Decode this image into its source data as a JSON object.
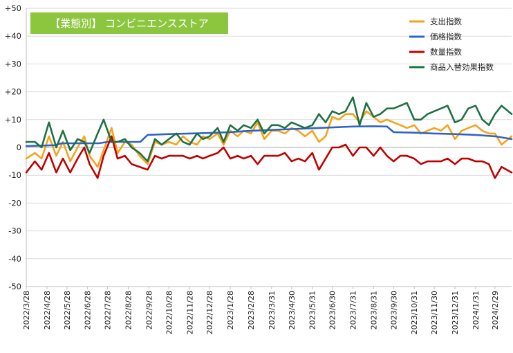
{
  "chart_data": {
    "type": "line",
    "title": "【業態別】 コンビニエンスストア",
    "title_bg_color": "#8cc63f",
    "ylim": [
      -50,
      50
    ],
    "y_ticks": [
      "-50",
      "-40",
      "-30",
      "-20",
      "-10",
      "0",
      "+10",
      "+20",
      "+30",
      "+40",
      "+50"
    ],
    "y_tick_values": [
      -50,
      -40,
      -30,
      -20,
      -10,
      0,
      10,
      20,
      30,
      40,
      50
    ],
    "x_start": "2022-03-28",
    "x_end": "2024-03-25",
    "x_tick_labels": [
      "2022/3/28",
      "2022/4/28",
      "2022/5/28",
      "2022/6/28",
      "2022/7/28",
      "2022/8/28",
      "2022/9/28",
      "2022/10/28",
      "2022/11/28",
      "2022/12/28",
      "2023/1/28",
      "2023/2/28",
      "2023/3/31",
      "2023/4/30",
      "2023/5/31",
      "2023/6/30",
      "2023/7/31",
      "2023/8/31",
      "2023/9/30",
      "2023/10/31",
      "2023/11/30",
      "2023/12/31",
      "2024/1/31",
      "2024/2/29"
    ],
    "x_tick_dates": [
      "2022-03-28",
      "2022-04-28",
      "2022-05-28",
      "2022-06-28",
      "2022-07-28",
      "2022-08-28",
      "2022-09-28",
      "2022-10-28",
      "2022-11-28",
      "2022-12-28",
      "2023-01-28",
      "2023-02-28",
      "2023-03-31",
      "2023-04-30",
      "2023-05-31",
      "2023-06-30",
      "2023-07-31",
      "2023-08-31",
      "2023-09-30",
      "2023-10-31",
      "2023-11-30",
      "2023-12-31",
      "2024-01-31",
      "2024-02-29"
    ],
    "legend_position": "top-right",
    "grid": "horizontal",
    "series": [
      {
        "name": "支出指数",
        "color": "#f7a21b",
        "x": [
          "2022-03-28",
          "2022-04-10",
          "2022-04-20",
          "2022-05-01",
          "2022-05-12",
          "2022-05-22",
          "2022-06-02",
          "2022-06-13",
          "2022-06-23",
          "2022-07-01",
          "2022-07-13",
          "2022-07-22",
          "2022-08-03",
          "2022-08-12",
          "2022-08-23",
          "2022-09-02",
          "2022-09-14",
          "2022-09-26",
          "2022-10-07",
          "2022-10-17",
          "2022-10-28",
          "2022-11-08",
          "2022-11-18",
          "2022-11-28",
          "2022-12-09",
          "2022-12-18",
          "2022-12-28",
          "2023-01-09",
          "2023-01-18",
          "2023-01-28",
          "2023-02-08",
          "2023-02-17",
          "2023-02-28",
          "2023-03-10",
          "2023-03-20",
          "2023-03-31",
          "2023-04-10",
          "2023-04-20",
          "2023-04-30",
          "2023-05-10",
          "2023-05-20",
          "2023-05-31",
          "2023-06-10",
          "2023-06-20",
          "2023-06-30",
          "2023-07-10",
          "2023-07-20",
          "2023-07-31",
          "2023-08-10",
          "2023-08-20",
          "2023-08-31",
          "2023-09-10",
          "2023-09-20",
          "2023-09-30",
          "2023-10-10",
          "2023-10-20",
          "2023-10-31",
          "2023-11-10",
          "2023-11-20",
          "2023-11-30",
          "2023-12-10",
          "2023-12-20",
          "2023-12-31",
          "2024-01-10",
          "2024-01-20",
          "2024-01-31",
          "2024-02-10",
          "2024-02-20",
          "2024-02-29",
          "2024-03-10",
          "2024-03-25"
        ],
        "values": [
          -4,
          -2,
          -4,
          4,
          -3,
          2,
          -5,
          0,
          4,
          -3,
          -7,
          -1,
          7,
          -2,
          2,
          1,
          -3,
          -6,
          2,
          1,
          2,
          1,
          4,
          2,
          1,
          4,
          3,
          5,
          1,
          6,
          4,
          6,
          5,
          9,
          3,
          6,
          6,
          5,
          7,
          6,
          4,
          6,
          2,
          4,
          11,
          10,
          12,
          12,
          9,
          13,
          11,
          9,
          10,
          9,
          8,
          7,
          8,
          5,
          6,
          7,
          6,
          8,
          3,
          6,
          7,
          8,
          6,
          5,
          5,
          1,
          4
        ]
      },
      {
        "name": "価格指数",
        "color": "#2e64c8",
        "x": [
          "2022-03-28",
          "2022-05-10",
          "2022-05-20",
          "2022-06-20",
          "2022-07-15",
          "2022-07-28",
          "2022-08-20",
          "2022-09-15",
          "2022-09-26",
          "2022-10-28",
          "2022-11-28",
          "2022-12-28",
          "2023-01-28",
          "2023-02-28",
          "2023-03-31",
          "2023-04-30",
          "2023-05-31",
          "2023-06-30",
          "2023-07-31",
          "2023-08-31",
          "2023-09-20",
          "2023-09-30",
          "2023-10-31",
          "2023-11-30",
          "2023-12-31",
          "2024-01-31",
          "2024-02-29",
          "2024-03-25"
        ],
        "values": [
          0.5,
          0.8,
          1.5,
          1.5,
          1.5,
          2.0,
          2.0,
          2.0,
          4.5,
          4.8,
          5.0,
          5.2,
          5.5,
          6.0,
          6.3,
          6.6,
          6.9,
          7.2,
          7.5,
          7.6,
          7.5,
          5.5,
          5.3,
          5.0,
          4.8,
          4.5,
          4.0,
          3.0
        ]
      },
      {
        "name": "数量指数",
        "color": "#c00000",
        "x": [
          "2022-03-28",
          "2022-04-10",
          "2022-04-20",
          "2022-05-01",
          "2022-05-12",
          "2022-05-22",
          "2022-06-02",
          "2022-06-13",
          "2022-06-23",
          "2022-07-01",
          "2022-07-13",
          "2022-07-22",
          "2022-08-03",
          "2022-08-12",
          "2022-08-23",
          "2022-09-02",
          "2022-09-14",
          "2022-09-26",
          "2022-10-07",
          "2022-10-17",
          "2022-10-28",
          "2022-11-08",
          "2022-11-18",
          "2022-11-28",
          "2022-12-09",
          "2022-12-18",
          "2022-12-28",
          "2023-01-09",
          "2023-01-18",
          "2023-01-28",
          "2023-02-08",
          "2023-02-17",
          "2023-02-28",
          "2023-03-10",
          "2023-03-20",
          "2023-03-31",
          "2023-04-10",
          "2023-04-20",
          "2023-04-30",
          "2023-05-10",
          "2023-05-20",
          "2023-05-31",
          "2023-06-10",
          "2023-06-20",
          "2023-06-30",
          "2023-07-10",
          "2023-07-20",
          "2023-07-31",
          "2023-08-10",
          "2023-08-20",
          "2023-08-31",
          "2023-09-10",
          "2023-09-20",
          "2023-09-30",
          "2023-10-10",
          "2023-10-20",
          "2023-10-31",
          "2023-11-10",
          "2023-11-20",
          "2023-11-30",
          "2023-12-10",
          "2023-12-20",
          "2023-12-31",
          "2024-01-10",
          "2024-01-20",
          "2024-01-31",
          "2024-02-10",
          "2024-02-20",
          "2024-02-29",
          "2024-03-10",
          "2024-03-25"
        ],
        "values": [
          -9,
          -5,
          -8,
          -2,
          -9,
          -4,
          -9,
          -4,
          0,
          -6,
          -11,
          -3,
          4,
          -4,
          -3,
          -6,
          -7,
          -8,
          -3,
          -4,
          -3,
          -3,
          -3,
          -4,
          -3,
          -4,
          -3,
          -2,
          0,
          -4,
          -3,
          -4,
          -3,
          -6,
          -3,
          -3,
          -3,
          -2,
          -5,
          -4,
          -5,
          -2,
          -8,
          -4,
          0,
          0,
          1,
          -3,
          0,
          0,
          -3,
          0,
          -3,
          -5,
          -3,
          -3,
          -4,
          -6,
          -5,
          -5,
          -5,
          -4,
          -6,
          -4,
          -4,
          -5,
          -5,
          -6,
          -11,
          -7,
          -9
        ]
      },
      {
        "name": "商品入替効果指数",
        "color": "#1e7145",
        "x": [
          "2022-03-28",
          "2022-04-10",
          "2022-04-20",
          "2022-05-01",
          "2022-05-12",
          "2022-05-22",
          "2022-06-02",
          "2022-06-13",
          "2022-06-23",
          "2022-07-01",
          "2022-07-13",
          "2022-07-22",
          "2022-08-03",
          "2022-08-12",
          "2022-08-23",
          "2022-09-02",
          "2022-09-14",
          "2022-09-26",
          "2022-10-07",
          "2022-10-17",
          "2022-10-28",
          "2022-11-08",
          "2022-11-18",
          "2022-11-28",
          "2022-12-09",
          "2022-12-18",
          "2022-12-28",
          "2023-01-09",
          "2023-01-18",
          "2023-01-28",
          "2023-02-08",
          "2023-02-17",
          "2023-02-28",
          "2023-03-10",
          "2023-03-20",
          "2023-03-31",
          "2023-04-10",
          "2023-04-20",
          "2023-04-30",
          "2023-05-10",
          "2023-05-20",
          "2023-05-31",
          "2023-06-10",
          "2023-06-20",
          "2023-06-30",
          "2023-07-10",
          "2023-07-20",
          "2023-07-31",
          "2023-08-10",
          "2023-08-20",
          "2023-08-31",
          "2023-09-10",
          "2023-09-20",
          "2023-09-30",
          "2023-10-10",
          "2023-10-20",
          "2023-10-31",
          "2023-11-10",
          "2023-11-20",
          "2023-11-30",
          "2023-12-10",
          "2023-12-20",
          "2023-12-31",
          "2024-01-10",
          "2024-01-20",
          "2024-01-31",
          "2024-02-10",
          "2024-02-20",
          "2024-02-29",
          "2024-03-10",
          "2024-03-25"
        ],
        "values": [
          2,
          2,
          0,
          9,
          0,
          6,
          -1,
          3,
          2,
          -2,
          5,
          10,
          2,
          2,
          3,
          0,
          -2,
          -5,
          3,
          1,
          3,
          5,
          2,
          1,
          5,
          3,
          4,
          7,
          2,
          8,
          6,
          8,
          7,
          10,
          5,
          8,
          8,
          7,
          9,
          8,
          7,
          8,
          12,
          9,
          13,
          12,
          13,
          18,
          8,
          16,
          11,
          12,
          14,
          14,
          15,
          16,
          10,
          10,
          12,
          13,
          14,
          15,
          9,
          10,
          14,
          15,
          10,
          8,
          12,
          15,
          12
        ]
      }
    ]
  }
}
